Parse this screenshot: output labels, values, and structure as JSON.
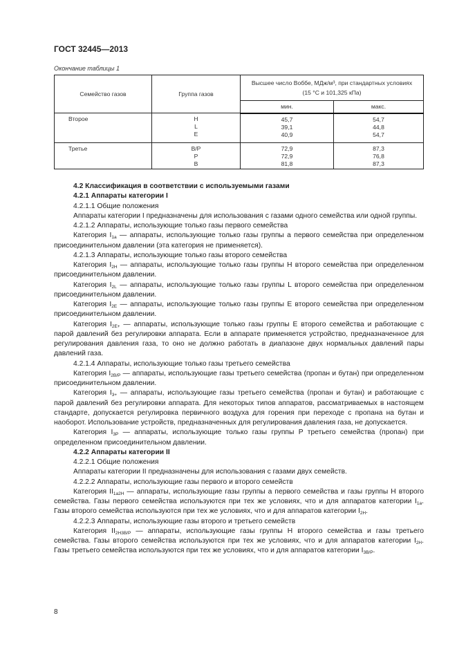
{
  "header": "ГОСТ 32445—2013",
  "table": {
    "caption": "Окончание таблицы 1",
    "col_family": "Семейство газов",
    "col_group": "Группа газов",
    "col_wobbe": "Высшее число Воббе, МДж/м³, при стандартных условиях",
    "col_wobbe_cond": "(15 °С и 101,325 кПа)",
    "col_min": "мин.",
    "col_max": "макс.",
    "rows": [
      {
        "family": "Второе",
        "groups": "H\nL\nE",
        "min": "45,7\n39,1\n40,9",
        "max": "54,7\n44,8\n54,7"
      },
      {
        "family": "Третье",
        "groups": "B/P\nP\nB",
        "min": "72,9\n72,9\n81,8",
        "max": "87,3\n76,8\n87,3"
      }
    ]
  },
  "paragraphs": [
    {
      "bold": true,
      "text": "4.2  Классификация в соответствии с используемыми газами"
    },
    {
      "bold": true,
      "text": "4.2.1  Аппараты категории I"
    },
    {
      "text": "4.2.1.1  Общие положения"
    },
    {
      "text": "Аппараты категории I предназначены для использования с газами одного семейства или одной группы."
    },
    {
      "text": "4.2.1.2  Аппараты, использующие только газы первого семейства"
    },
    {
      "pre": "Категория I",
      "sub": "1a",
      "text": " — аппараты, использующие только газы группы а первого семейства при определенном присоединительном давлении (эта категория не применяется)."
    },
    {
      "text": "4.2.1.3  Аппараты, использующие только газы второго семейства"
    },
    {
      "pre": "Категория I",
      "sub": "2H",
      "text": " — аппараты, использующие только газы группы H второго семейства при определенном присоединительном давлении."
    },
    {
      "pre": "Категория I",
      "sub": "2L",
      "text": " — аппараты, использующие только газы группы L второго семейства при определенном присоединительном давлении."
    },
    {
      "pre": "Категория I",
      "sub": "2E",
      "text": " — аппараты, использующие только газы группы E второго семейства при определенном присоединительном давлении."
    },
    {
      "pre": "Категория I",
      "sub": "2E+",
      "text": " — аппараты, использующие только газы группы E второго семейства и работающие с парой давлений без регулировки аппарата. Если в аппарате применяется устройство, предназначенное для регулирования давления газа, то оно не должно работать в диапазоне двух нормальных давлений пары давлений газа."
    },
    {
      "text": "4.2.1.4  Аппараты, использующие только газы третьего семейства"
    },
    {
      "pre": "Категория I",
      "sub": "2B/P",
      "text": " — аппараты, использующие газы третьего семейства (пропан и бутан) при определенном присоединительном давлении."
    },
    {
      "pre": "Категория I",
      "sub": "3+",
      "text": " — аппараты, использующие газы третьего семейства (пропан и бутан) и работающие с парой давлений без регулировки аппарата. Для некоторых типов аппаратов, рассматриваемых в настоящем стандарте, допускается регулировка первичного воздуха для горения при переходе с пропана на бутан и наоборот. Использование устройств, предназначенных для регулирования давления газа, не допускается."
    },
    {
      "pre": "Категория I",
      "sub": "3P",
      "text": " — аппараты, использующие только газы группы P третьего семейства (пропан) при определенном присоединительном давлении."
    },
    {
      "bold": true,
      "text": "4.2.2  Аппараты категории II"
    },
    {
      "text": "4.2.2.1  Общие положения"
    },
    {
      "text": "Аппараты категории II предназначены для использования с газами двух семейств."
    },
    {
      "text": "4.2.2.2  Аппараты, использующие газы первого и второго семейств"
    },
    {
      "pre": "Категория II",
      "sub": "1a2H",
      "text": " — аппараты, использующие газы группы а первого семейства и газы группы H второго семейства. Газы первого семейства используются при тех же условиях, что и для аппаратов категории I",
      "sub2": "1a",
      "text2": ". Газы второго семейства используются при тех же условиях, что и для аппаратов категории I",
      "sub3": "2H",
      "text3": "."
    },
    {
      "text": "4.2.2.3  Аппараты, использующие газы второго и третьего семейств"
    },
    {
      "pre": "Категория II",
      "sub": "2H3B/P",
      "text": " — аппараты, использующие газы группы H второго семейства и газы третьего семейства. Газы второго семейства используются при тех же условиях, что и для аппаратов категории I",
      "sub2": "2H",
      "text2": ". Газы третьего семейства используются при тех же условиях, что и для аппаратов категории I",
      "sub3": "3B/P",
      "text3": "."
    }
  ],
  "page_number": "8"
}
